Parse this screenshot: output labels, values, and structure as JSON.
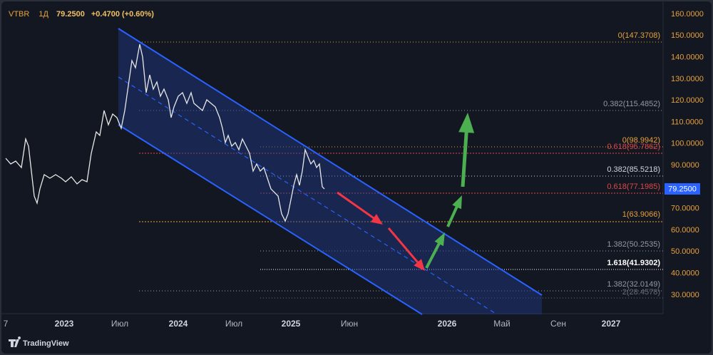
{
  "header": {
    "symbol": "VTBR",
    "interval": "1Д",
    "price": "79.2500",
    "change": "+0.4700 (+0.60%)"
  },
  "price_axis": {
    "labels": [
      "160.0000",
      "150.0000",
      "140.0000",
      "130.0000",
      "120.0000",
      "110.0000",
      "100.0000",
      "90.0000",
      "80.0000",
      "70.0000",
      "60.0000",
      "50.0000",
      "40.0000",
      "30.0000"
    ],
    "current_price": "79.2500"
  },
  "time_axis": {
    "labels": [
      "7",
      "2023",
      "Июл",
      "2024",
      "Июл",
      "2025",
      "Июн",
      "2026",
      "Май",
      "Сен",
      "2027"
    ]
  },
  "fibonacci": {
    "levels": [
      "0(147.3708)",
      "0.382(115.4852)",
      "0(98.9942)",
      "0.618(95.7862)",
      "0.382(85.5218)",
      "0.618(77.1985)",
      "1(63.9066)",
      "1.382(50.2535)",
      "1.618(41.9302)",
      "1.382(32.0149)",
      "2(28.4578)"
    ]
  },
  "footer": {
    "brand": "TradingView"
  }
}
